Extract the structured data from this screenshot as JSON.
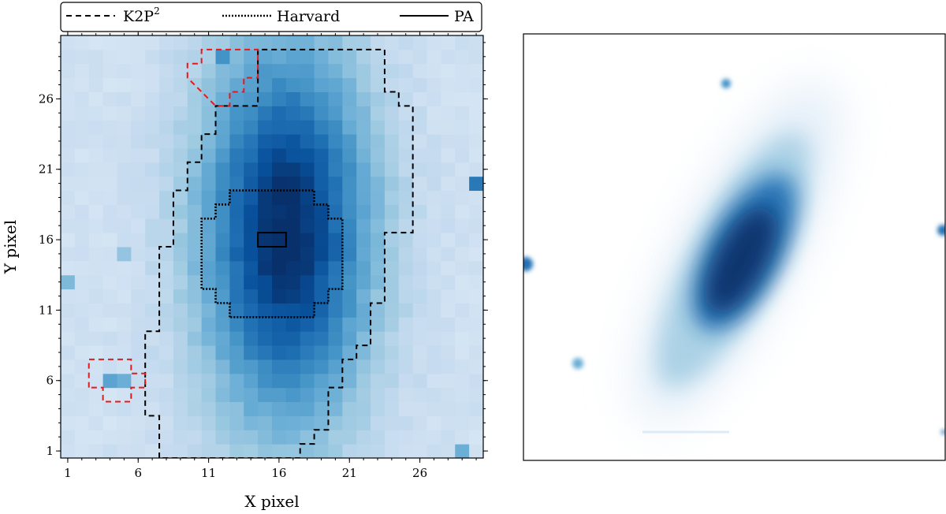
{
  "chart_data": [
    {
      "type": "heatmap",
      "title": "",
      "xlabel": "X pixel",
      "ylabel": "Y pixel",
      "xlim": [
        0.5,
        30.5
      ],
      "ylim": [
        0.5,
        30.5
      ],
      "x_ticks": [
        1,
        6,
        11,
        16,
        21,
        26
      ],
      "y_ticks": [
        1,
        6,
        11,
        16,
        21,
        26
      ],
      "colormap": "Blues",
      "source_center": [
        16.5,
        16.5
      ],
      "background_level": 0.2,
      "pixel_noise": 0.06,
      "hot_pixels": [
        {
          "x": 12,
          "y": 29,
          "value": 0.62
        },
        {
          "x": 4,
          "y": 6,
          "value": 0.55
        },
        {
          "x": 5,
          "y": 6,
          "value": 0.5
        },
        {
          "x": 30,
          "y": 20,
          "value": 0.72
        },
        {
          "x": 29,
          "y": 1,
          "value": 0.5
        },
        {
          "x": 1,
          "y": 13,
          "value": 0.45
        },
        {
          "x": 5,
          "y": 15,
          "value": 0.4
        }
      ],
      "legend": {
        "position": "top",
        "entries": [
          {
            "label": "K2P",
            "superscript": "2",
            "style": "dashed"
          },
          {
            "label": "Harvard",
            "style": "dotted"
          },
          {
            "label": "PA",
            "style": "solid"
          }
        ]
      },
      "apertures": {
        "k2p2_main_outline": [
          [
            8,
            1
          ],
          [
            8,
            4
          ],
          [
            7,
            4
          ],
          [
            7,
            10
          ],
          [
            8,
            10
          ],
          [
            8,
            16
          ],
          [
            9,
            16
          ],
          [
            9,
            20
          ],
          [
            10,
            20
          ],
          [
            10,
            22
          ],
          [
            11,
            22
          ],
          [
            11,
            24
          ],
          [
            12,
            24
          ],
          [
            12,
            26
          ],
          [
            15,
            26
          ],
          [
            15,
            30
          ],
          [
            24,
            30
          ],
          [
            24,
            27
          ],
          [
            25,
            27
          ],
          [
            25,
            26
          ],
          [
            26,
            26
          ],
          [
            26,
            17
          ],
          [
            24,
            17
          ],
          [
            24,
            12
          ],
          [
            23,
            12
          ],
          [
            23,
            9
          ],
          [
            22,
            9
          ],
          [
            22,
            8
          ],
          [
            21,
            8
          ],
          [
            21,
            6
          ],
          [
            20,
            6
          ],
          [
            20,
            3
          ],
          [
            19,
            3
          ],
          [
            19,
            2
          ],
          [
            18,
            2
          ],
          [
            18,
            1
          ]
        ],
        "k2p2_red_top": [
          [
            10,
            28
          ],
          [
            10,
            29
          ],
          [
            11,
            29
          ],
          [
            11,
            30
          ],
          [
            15,
            30
          ],
          [
            15,
            28
          ],
          [
            14,
            28
          ],
          [
            14,
            27
          ],
          [
            13,
            27
          ],
          [
            13,
            26
          ],
          [
            12,
            26
          ]
        ],
        "k2p2_red_bottom": [
          [
            3,
            6
          ],
          [
            3,
            8
          ],
          [
            6,
            8
          ],
          [
            6,
            7
          ],
          [
            7,
            7
          ],
          [
            7,
            6
          ],
          [
            6,
            6
          ],
          [
            6,
            5
          ],
          [
            4,
            5
          ],
          [
            4,
            6
          ]
        ],
        "harvard_outline": [
          [
            13,
            11
          ],
          [
            13,
            12
          ],
          [
            12,
            12
          ],
          [
            12,
            13
          ],
          [
            11,
            13
          ],
          [
            11,
            18
          ],
          [
            12,
            18
          ],
          [
            12,
            19
          ],
          [
            13,
            19
          ],
          [
            13,
            20
          ],
          [
            19,
            20
          ],
          [
            19,
            19
          ],
          [
            20,
            19
          ],
          [
            20,
            18
          ],
          [
            21,
            18
          ],
          [
            21,
            13
          ],
          [
            20,
            13
          ],
          [
            20,
            12
          ],
          [
            19,
            12
          ],
          [
            19,
            11
          ]
        ],
        "pa_box": [
          [
            15,
            16
          ],
          [
            15,
            17
          ],
          [
            17,
            17
          ],
          [
            17,
            16
          ]
        ]
      }
    },
    {
      "type": "image",
      "title": "",
      "description_hidden": true,
      "colormap": "Blues",
      "axes_visible": false
    }
  ]
}
